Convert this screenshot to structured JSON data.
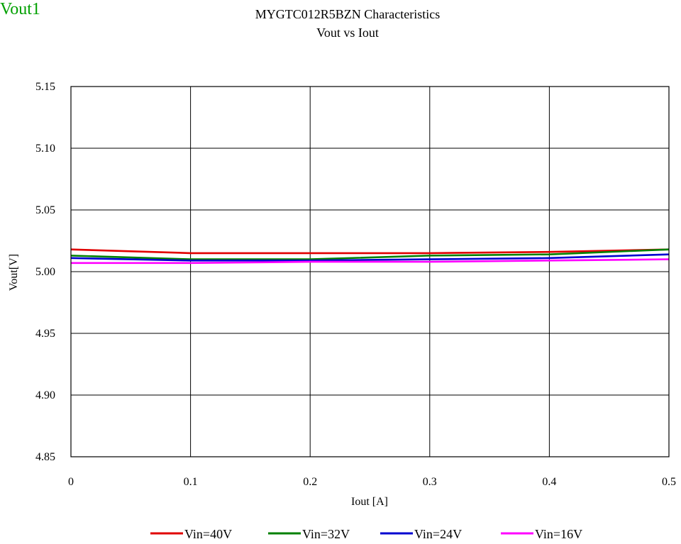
{
  "corner_label": "Vout1",
  "chart_data": {
    "type": "line",
    "title": "MYGTC012R5BZN Characteristics",
    "subtitle": "Vout vs Iout",
    "xlabel": "Iout [A]",
    "ylabel": "Vout[V]",
    "xlim": [
      0,
      0.5
    ],
    "ylim": [
      4.85,
      5.15
    ],
    "xticks": [
      "0",
      "0.1",
      "0.2",
      "0.3",
      "0.4",
      "0.5"
    ],
    "yticks": [
      "4.85",
      "4.90",
      "4.95",
      "5.00",
      "5.05",
      "5.10",
      "5.15"
    ],
    "grid": true,
    "legend_position": "bottom",
    "x": [
      0,
      0.1,
      0.2,
      0.3,
      0.4,
      0.5
    ],
    "series": [
      {
        "name": "Vin=40V",
        "color": "#e00000",
        "values": [
          5.018,
          5.015,
          5.015,
          5.015,
          5.016,
          5.018
        ]
      },
      {
        "name": "Vin=32V",
        "color": "#008000",
        "values": [
          5.013,
          5.01,
          5.01,
          5.013,
          5.014,
          5.018
        ]
      },
      {
        "name": "Vin=24V",
        "color": "#0000d0",
        "values": [
          5.011,
          5.009,
          5.009,
          5.01,
          5.011,
          5.014
        ]
      },
      {
        "name": "Vin=16V",
        "color": "#ff00ff",
        "values": [
          5.007,
          5.007,
          5.008,
          5.008,
          5.009,
          5.01
        ]
      }
    ]
  }
}
